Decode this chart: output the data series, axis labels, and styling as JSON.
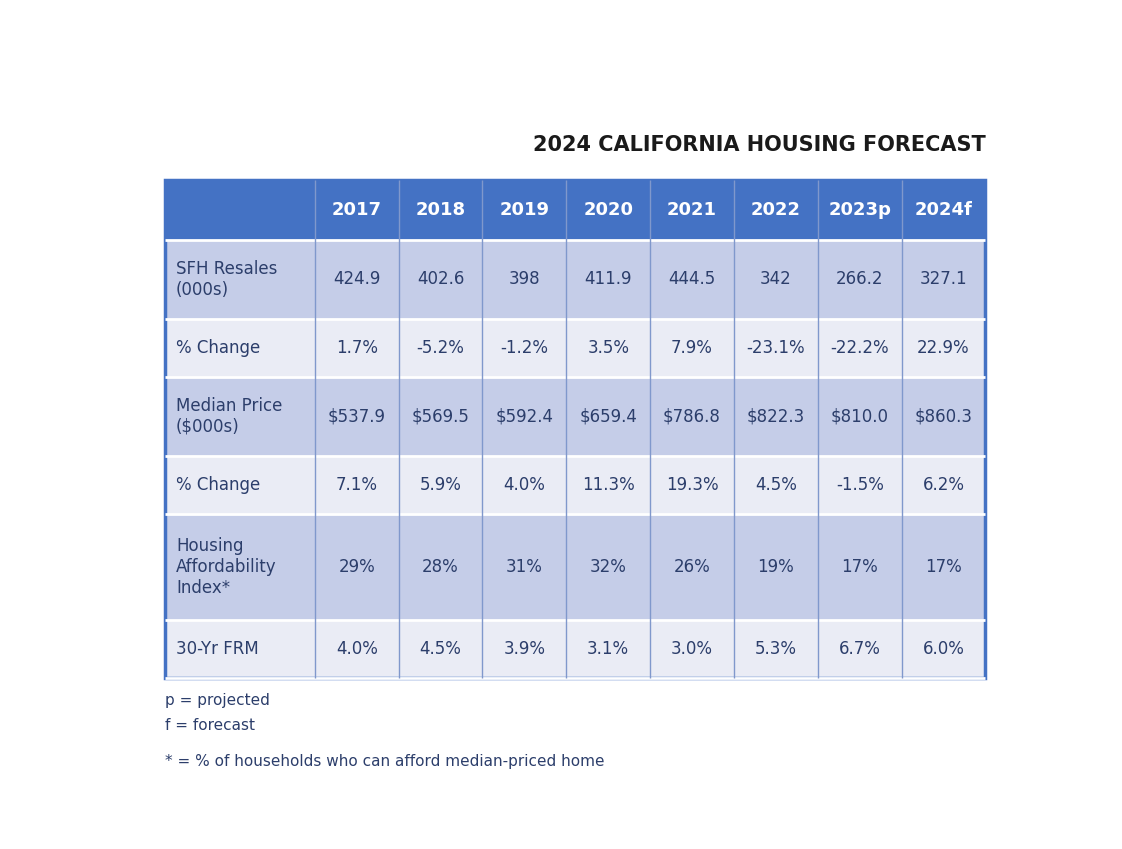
{
  "title": "2024 CALIFORNIA HOUSING FORECAST",
  "columns": [
    "",
    "2017",
    "2018",
    "2019",
    "2020",
    "2021",
    "2022",
    "2023p",
    "2024f"
  ],
  "rows": [
    {
      "label": "SFH Resales\n(000s)",
      "values": [
        "424.9",
        "402.6",
        "398",
        "411.9",
        "444.5",
        "342",
        "266.2",
        "327.1"
      ],
      "shaded": true
    },
    {
      "label": "% Change",
      "values": [
        "1.7%",
        "-5.2%",
        "-1.2%",
        "3.5%",
        "7.9%",
        "-23.1%",
        "-22.2%",
        "22.9%"
      ],
      "shaded": false
    },
    {
      "label": "Median Price\n($000s)",
      "values": [
        "$537.9",
        "$569.5",
        "$592.4",
        "$659.4",
        "$786.8",
        "$822.3",
        "$810.0",
        "$860.3"
      ],
      "shaded": true
    },
    {
      "label": "% Change",
      "values": [
        "7.1%",
        "5.9%",
        "4.0%",
        "11.3%",
        "19.3%",
        "4.5%",
        "-1.5%",
        "6.2%"
      ],
      "shaded": false
    },
    {
      "label": "Housing\nAffordability\nIndex*",
      "values": [
        "29%",
        "28%",
        "31%",
        "32%",
        "26%",
        "19%",
        "17%",
        "17%"
      ],
      "shaded": true
    },
    {
      "label": "30-Yr FRM",
      "values": [
        "4.0%",
        "4.5%",
        "3.9%",
        "3.1%",
        "3.0%",
        "5.3%",
        "6.7%",
        "6.0%"
      ],
      "shaded": false
    }
  ],
  "footnotes": [
    "p = projected",
    "f = forecast",
    "",
    "* = % of households who can afford median-priced home"
  ],
  "header_bg": "#4472C4",
  "header_text": "#FFFFFF",
  "shaded_bg": "#C5CDE8",
  "unshaded_bg": "#EAECF5",
  "cell_text": "#2C3E6B",
  "background_color": "#FFFFFF",
  "title_fontsize": 15,
  "header_fontsize": 13,
  "cell_fontsize": 12,
  "label_fontsize": 12,
  "footnote_fontsize": 11,
  "divider_color": "#FFFFFF",
  "outer_border_color": "#4472C4",
  "col_divider_color": "#8098CC"
}
